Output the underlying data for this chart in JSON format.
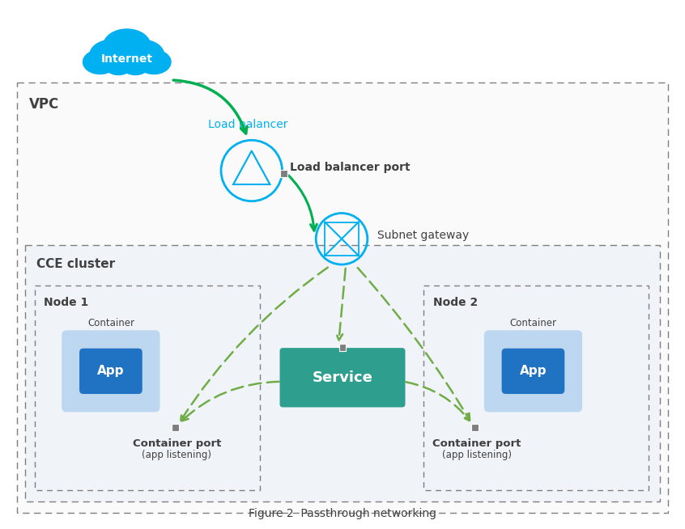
{
  "fig_width": 8.46,
  "fig_height": 6.54,
  "bg_color": "#ffffff",
  "title": "Figure 2  Passthrough networking",
  "vpc_label": "VPC",
  "cce_label": "CCE cluster",
  "node1_label": "Node 1",
  "node2_label": "Node 2",
  "internet_label": "Internet",
  "lb_label": "Load balancer",
  "lb_port_label": "Load balancer port",
  "gateway_label": "Subnet gateway",
  "service_label": "Service",
  "app_label": "App",
  "container_label": "Container",
  "port_label_line1": "Container port",
  "port_label_line2": "(app listening)",
  "green_solid": "#00b050",
  "green_dashed": "#70ad47",
  "blue_circle": "#00b0f0",
  "teal_service": "#2e9e8e",
  "app_blue": "#2072c3",
  "app_bg": "#bdd7f0",
  "port_gray": "#7f7f7f",
  "border_gray": "#7f7f7f",
  "text_dark": "#404040"
}
